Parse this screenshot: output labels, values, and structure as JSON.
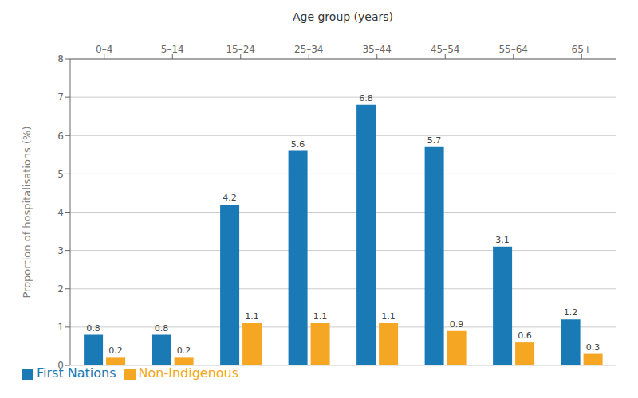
{
  "chart_data": {
    "type": "bar",
    "title": "Age group (years)",
    "ylabel": "Proportion of hospitalisations (%)",
    "categories": [
      "0–4",
      "5–14",
      "15–24",
      "25–34",
      "35–44",
      "45–54",
      "55–64",
      "65+"
    ],
    "series": [
      {
        "name": "First Nations",
        "color": "#1a7ab5",
        "values": [
          0.8,
          0.8,
          4.2,
          5.6,
          6.8,
          5.7,
          3.1,
          1.2
        ]
      },
      {
        "name": "Non-Indigenous",
        "color": "#f5a623",
        "values": [
          0.2,
          0.2,
          1.1,
          1.1,
          1.1,
          0.9,
          0.6,
          0.3
        ]
      }
    ],
    "ylim": [
      0,
      8
    ],
    "yticks": [
      0,
      1,
      2,
      3,
      4,
      5,
      6,
      7,
      8
    ],
    "grid": true,
    "legend": "bottom",
    "data_labels": true
  }
}
